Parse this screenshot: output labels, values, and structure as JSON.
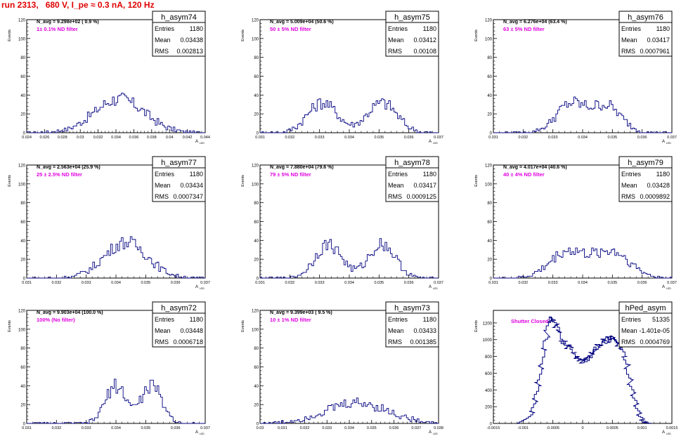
{
  "header": {
    "title": "run 2313,   680 V, I_pe ≈ 0.3 nA, 120 Hz"
  },
  "colors": {
    "title": "#e00000",
    "annotation": "#e000e0",
    "histogram": "#000080",
    "axis": "#000000"
  },
  "chart_data": [
    {
      "type": "histogram",
      "name": "h_asym74",
      "navg": "N_avg = 9.298e+02 ( 0.9 %)",
      "note": "1± 0.1% ND filter",
      "stats": {
        "entries": "1180",
        "mean": "0.03438",
        "rms": "0.002813"
      },
      "xlim": [
        0.024,
        0.044
      ],
      "xticks": [
        "0.024",
        "0.026",
        "0.028",
        "0.03",
        "0.032",
        "0.034",
        "0.036",
        "0.038",
        "0.04",
        "0.042",
        "0.044"
      ],
      "ylim": [
        0,
        120
      ],
      "yticks": [
        "0",
        "20",
        "40",
        "60",
        "80",
        "100",
        "120"
      ],
      "xlabel": "A",
      "xsub": "LED",
      "ylabel": "Events",
      "mode": "gauss",
      "peaks": [
        {
          "mu": 0.03438,
          "sigma": 0.0028,
          "amp": 36
        }
      ]
    },
    {
      "type": "histogram",
      "name": "h_asym75",
      "navg": "N_avg = 5.009e+04 (50.6 %)",
      "note": "50 ± 5% ND filter",
      "stats": {
        "entries": "1180",
        "mean": "0.03412",
        "rms": "0.00108"
      },
      "xlim": [
        0.031,
        0.037
      ],
      "xticks": [
        "0.031",
        "0.032",
        "0.033",
        "0.034",
        "0.035",
        "0.036",
        "0.037"
      ],
      "ylim": [
        0,
        120
      ],
      "yticks": [
        "0",
        "20",
        "40",
        "60",
        "80",
        "100",
        "120"
      ],
      "xlabel": "A",
      "xsub": "LED",
      "ylabel": "Events",
      "mode": "gauss",
      "peaks": [
        {
          "mu": 0.0331,
          "sigma": 0.0005,
          "amp": 32
        },
        {
          "mu": 0.0351,
          "sigma": 0.0005,
          "amp": 32
        }
      ]
    },
    {
      "type": "histogram",
      "name": "h_asym76",
      "navg": "N_avg = 6.276e+04 (63.4 %)",
      "note": "63 ± 5% ND filter",
      "stats": {
        "entries": "1180",
        "mean": "0.03417",
        "rms": "0.0007961"
      },
      "xlim": [
        0.031,
        0.037
      ],
      "xticks": [
        "0.031",
        "0.032",
        "0.033",
        "0.034",
        "0.035",
        "0.036",
        "0.037"
      ],
      "ylim": [
        0,
        120
      ],
      "yticks": [
        "0",
        "20",
        "40",
        "60",
        "80",
        "100",
        "120"
      ],
      "xlabel": "A",
      "xsub": "LED",
      "ylabel": "Events",
      "mode": "gauss",
      "peaks": [
        {
          "mu": 0.0336,
          "sigma": 0.0005,
          "amp": 30
        },
        {
          "mu": 0.0348,
          "sigma": 0.0005,
          "amp": 28
        }
      ]
    },
    {
      "type": "histogram",
      "name": "h_asym77",
      "navg": "N_avg = 2.563e+04 (25.9 %)",
      "note": "25 ± 2.5% ND filter",
      "stats": {
        "entries": "1180",
        "mean": "0.03434",
        "rms": "0.0007347"
      },
      "xlim": [
        0.031,
        0.037
      ],
      "xticks": [
        "0.031",
        "0.032",
        "0.033",
        "0.034",
        "0.035",
        "0.036",
        "0.037"
      ],
      "ylim": [
        0,
        120
      ],
      "yticks": [
        "0",
        "20",
        "40",
        "60",
        "80",
        "100",
        "120"
      ],
      "xlabel": "A",
      "xsub": "LED",
      "ylabel": "Events",
      "mode": "gauss",
      "peaks": [
        {
          "mu": 0.03434,
          "sigma": 0.00073,
          "amp": 38
        }
      ]
    },
    {
      "type": "histogram",
      "name": "h_asym78",
      "navg": "N_avg = 7.880e+04 (79.6 %)",
      "note": "79 ± 5% ND filter",
      "stats": {
        "entries": "1180",
        "mean": "0.03417",
        "rms": "0.0009125"
      },
      "xlim": [
        0.031,
        0.037
      ],
      "xticks": [
        "0.031",
        "0.032",
        "0.033",
        "0.034",
        "0.035",
        "0.036",
        "0.037"
      ],
      "ylim": [
        0,
        120
      ],
      "yticks": [
        "0",
        "20",
        "40",
        "60",
        "80",
        "100",
        "120"
      ],
      "xlabel": "A",
      "xsub": "LED",
      "ylabel": "Events",
      "mode": "gauss",
      "peaks": [
        {
          "mu": 0.0333,
          "sigma": 0.00045,
          "amp": 36
        },
        {
          "mu": 0.0351,
          "sigma": 0.00045,
          "amp": 36
        }
      ]
    },
    {
      "type": "histogram",
      "name": "h_asym79",
      "navg": "N_avg = 4.017e+04 (40.6 %)",
      "note": "40 ± 4% ND filter",
      "stats": {
        "entries": "1180",
        "mean": "0.03428",
        "rms": "0.0009892"
      },
      "xlim": [
        0.031,
        0.037
      ],
      "xticks": [
        "0.031",
        "0.032",
        "0.033",
        "0.034",
        "0.035",
        "0.036",
        "0.037"
      ],
      "ylim": [
        0,
        120
      ],
      "yticks": [
        "0",
        "20",
        "40",
        "60",
        "80",
        "100",
        "120"
      ],
      "xlabel": "A",
      "xsub": "LED",
      "ylabel": "Events",
      "mode": "gauss",
      "peaks": [
        {
          "mu": 0.0335,
          "sigma": 0.0006,
          "amp": 28
        },
        {
          "mu": 0.035,
          "sigma": 0.0006,
          "amp": 28
        }
      ]
    },
    {
      "type": "histogram",
      "name": "h_asym72",
      "navg": "N_avg = 9.903e+04 (100.0 %)",
      "note": "100% (No filter)",
      "stats": {
        "entries": "1180",
        "mean": "0.03448",
        "rms": "0.0006718"
      },
      "xlim": [
        0.031,
        0.037
      ],
      "xticks": [
        "0.031",
        "0.032",
        "0.033",
        "0.034",
        "0.035",
        "0.036",
        "0.037"
      ],
      "ylim": [
        0,
        120
      ],
      "yticks": [
        "0",
        "20",
        "40",
        "60",
        "80",
        "100",
        "120"
      ],
      "xlabel": "A",
      "xsub": "LED",
      "ylabel": "Events",
      "mode": "gauss",
      "peaks": [
        {
          "mu": 0.034,
          "sigma": 0.00035,
          "amp": 40
        },
        {
          "mu": 0.0352,
          "sigma": 0.00035,
          "amp": 40
        }
      ]
    },
    {
      "type": "histogram",
      "name": "h_asym73",
      "navg": "N_avg = 9.399e+03 ( 9.5 %)",
      "note": "10 ± 1% ND filter",
      "stats": {
        "entries": "1180",
        "mean": "0.03433",
        "rms": "0.001385"
      },
      "xlim": [
        0.03,
        0.038
      ],
      "xticks": [
        "0.03",
        "0.031",
        "0.032",
        "0.033",
        "0.034",
        "0.035",
        "0.036",
        "0.037",
        "0.038"
      ],
      "ylim": [
        0,
        120
      ],
      "yticks": [
        "0",
        "20",
        "40",
        "60",
        "80",
        "100",
        "120"
      ],
      "xlabel": "A",
      "xsub": "LED",
      "ylabel": "Events",
      "mode": "gauss",
      "peaks": [
        {
          "mu": 0.03433,
          "sigma": 0.0014,
          "amp": 22
        }
      ]
    },
    {
      "type": "histogram",
      "name": "hPed_asym",
      "navg": "",
      "note": "Shutter Closed",
      "stats": {
        "entries": "51335",
        "mean": "-1.401e-05",
        "rms": "0.0004769"
      },
      "xlim": [
        -0.0015,
        0.0015
      ],
      "xticks": [
        "-0.0015",
        "-0.001",
        "-0.0005",
        "0",
        "0.0005",
        "0.001",
        "0.0015"
      ],
      "ylim": [
        0,
        1350
      ],
      "yticks": [
        "0",
        "200",
        "400",
        "600",
        "800",
        "1000",
        "1200"
      ],
      "xlabel": "A",
      "xsub": "LED",
      "ylabel": "Events",
      "mode": "points",
      "points": [
        [
          -0.0011,
          5
        ],
        [
          -0.00095,
          60
        ],
        [
          -0.0009,
          150
        ],
        [
          -0.00085,
          300
        ],
        [
          -0.0008,
          480
        ],
        [
          -0.00075,
          680
        ],
        [
          -0.0007,
          900
        ],
        [
          -0.00065,
          1100
        ],
        [
          -0.0006,
          1220
        ],
        [
          -0.00055,
          1250
        ],
        [
          -0.0005,
          1180
        ],
        [
          -0.00045,
          1080
        ],
        [
          -0.0004,
          980
        ],
        [
          -0.00035,
          940
        ],
        [
          -0.0003,
          930
        ],
        [
          -0.00025,
          900
        ],
        [
          -0.0002,
          830
        ],
        [
          -0.00015,
          790
        ],
        [
          -0.0001,
          760
        ],
        [
          -5e-05,
          745
        ],
        [
          0,
          760
        ],
        [
          5e-05,
          790
        ],
        [
          0.0001,
          830
        ],
        [
          0.00015,
          870
        ],
        [
          0.0002,
          910
        ],
        [
          0.00025,
          950
        ],
        [
          0.0003,
          980
        ],
        [
          0.00035,
          1000
        ],
        [
          0.0004,
          1010
        ],
        [
          0.00045,
          1000
        ],
        [
          0.0005,
          980
        ],
        [
          0.00055,
          940
        ],
        [
          0.0006,
          880
        ],
        [
          0.00065,
          780
        ],
        [
          0.0007,
          640
        ],
        [
          0.00075,
          480
        ],
        [
          0.0008,
          330
        ],
        [
          0.00085,
          200
        ],
        [
          0.0009,
          100
        ],
        [
          0.00095,
          40
        ],
        [
          0.001,
          10
        ],
        [
          0.00105,
          0
        ]
      ]
    }
  ]
}
